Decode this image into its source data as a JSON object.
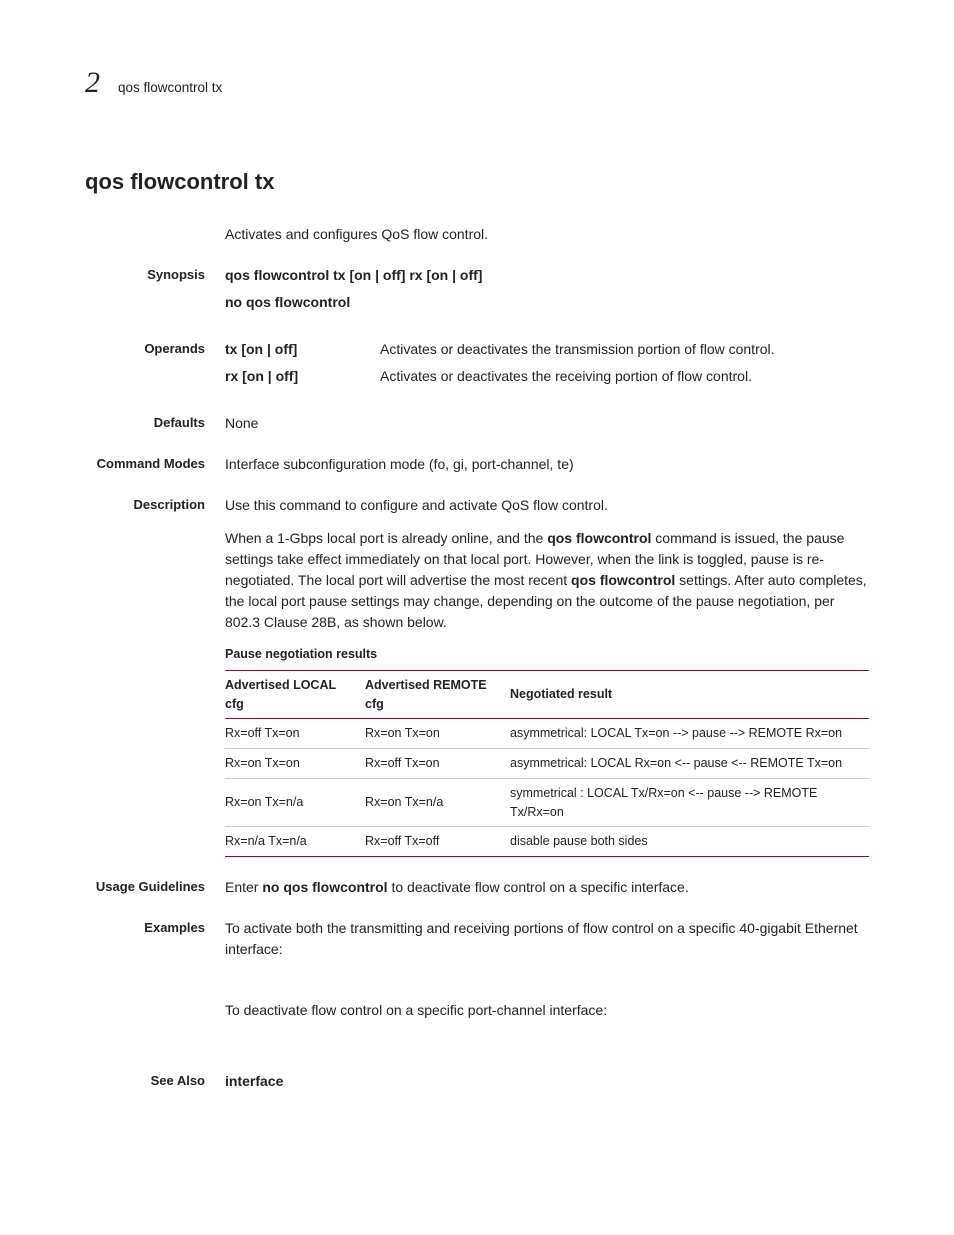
{
  "header": {
    "chapter_number": "2",
    "breadcrumb": "qos flowcontrol tx"
  },
  "title": "qos flowcontrol tx",
  "intro": "Activates and configures QoS flow control.",
  "synopsis": {
    "label": "Synopsis",
    "line1": "qos flowcontrol tx [on | off] rx [on | off]",
    "line2": "no qos flowcontrol"
  },
  "operands": {
    "label": "Operands",
    "items": [
      {
        "key": "tx [on | off]",
        "desc": "Activates or deactivates the transmission portion of flow control."
      },
      {
        "key": "rx [on | off]",
        "desc": "Activates or deactivates the receiving portion of flow control."
      }
    ]
  },
  "defaults": {
    "label": "Defaults",
    "value": "None"
  },
  "command_modes": {
    "label": "Command Modes",
    "value": "Interface subconfiguration mode (fo, gi, port-channel, te)"
  },
  "description": {
    "label": "Description",
    "line1": "Use this command to configure and activate QoS flow control.",
    "para_pre1": "When a 1-Gbps local port is already online, and the ",
    "para_bold1": "qos flowcontrol",
    "para_mid1": " command is issued, the pause settings take effect immediately on that local port. However, when the link is toggled, pause is re-negotiated. The local port will advertise the most recent ",
    "para_bold2": "qos flowcontrol",
    "para_post1": " settings. After auto completes, the local port pause settings may change, depending on the outcome of the pause negotiation, per 802.3 Clause 28B, as shown below."
  },
  "table": {
    "title": "Pause negotiation results",
    "headers": [
      "Advertised LOCAL cfg",
      "Advertised REMOTE cfg",
      "Negotiated result"
    ],
    "rows": [
      [
        "Rx=off Tx=on",
        "Rx=on Tx=on",
        "asymmetrical: LOCAL Tx=on   --> pause --> REMOTE Rx=on"
      ],
      [
        "Rx=on Tx=on",
        "Rx=off Tx=on",
        "asymmetrical: LOCAL Rx=on   <-- pause <-- REMOTE Tx=on"
      ],
      [
        "Rx=on Tx=n/a",
        "Rx=on Tx=n/a",
        "symmetrical : LOCAL Tx/Rx=on <-- pause --> REMOTE Tx/Rx=on"
      ],
      [
        "Rx=n/a Tx=n/a",
        "Rx=off Tx=off",
        "disable pause both sides"
      ]
    ]
  },
  "usage": {
    "label": "Usage Guidelines",
    "pre": "Enter ",
    "bold": "no qos flowcontrol",
    "post": " to deactivate flow control on a specific interface."
  },
  "examples": {
    "label": "Examples",
    "line1": "To activate both the transmitting and receiving portions of flow control on a specific 40-gigabit Ethernet interface:",
    "line2": "To deactivate flow control on a specific port-channel interface:"
  },
  "see_also": {
    "label": "See Also",
    "value": "interface"
  },
  "colors": {
    "text": "#222222",
    "rule_red": "#b00020",
    "row_border": "#cccccc",
    "background": "#ffffff"
  },
  "typography": {
    "body_fontsize": 14,
    "title_fontsize": 22,
    "chapter_fontsize": 30,
    "table_fontsize": 12.5,
    "label_fontsize": 13
  }
}
